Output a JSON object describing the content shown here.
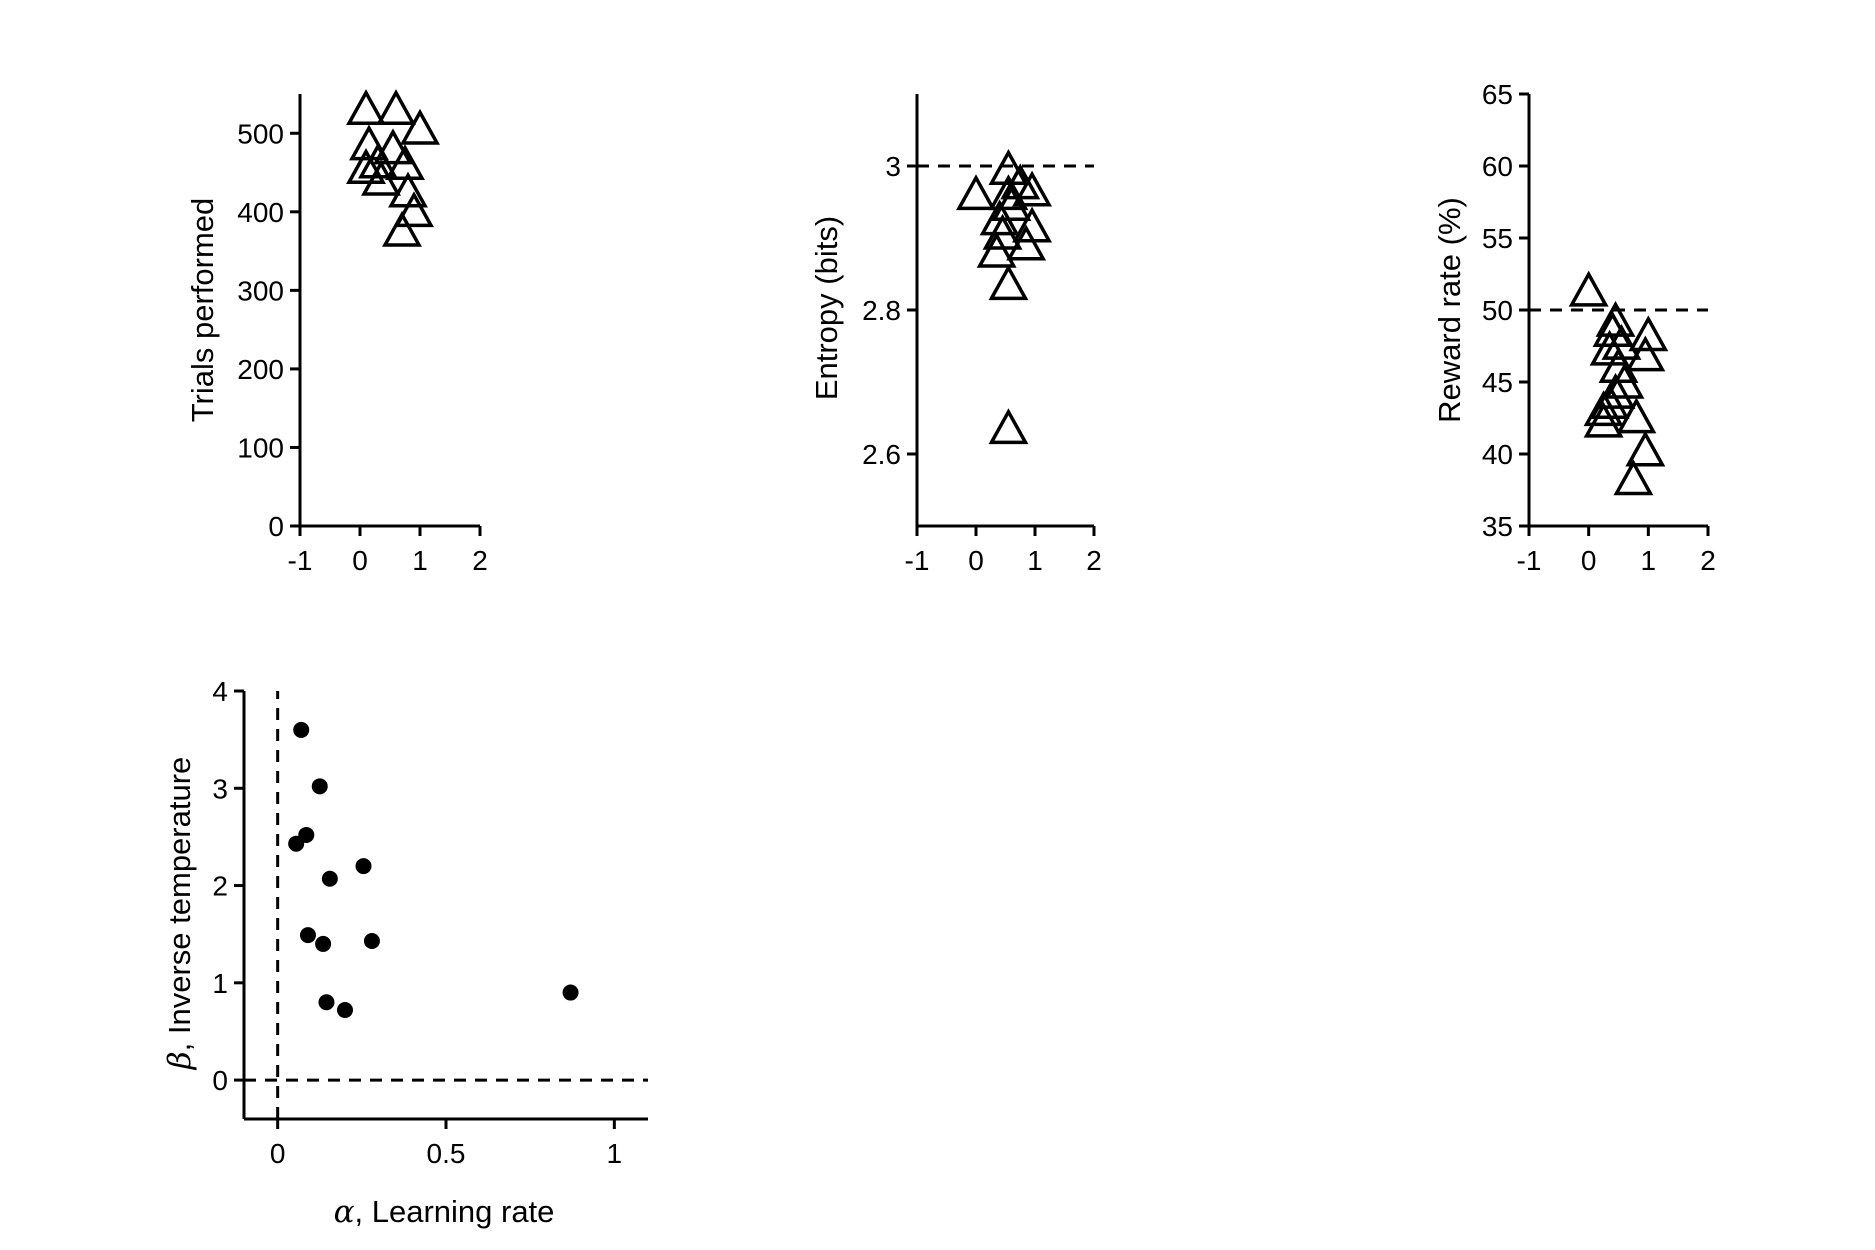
{
  "colors": {
    "marker": "#000000",
    "axis": "#000000",
    "background": "#ffffff"
  },
  "chart_data": [
    {
      "id": "trials",
      "type": "scatter",
      "marker": "open-triangle",
      "ylabel": "Trials performed",
      "xlim": [
        -1,
        2
      ],
      "ylim": [
        0,
        550
      ],
      "xticks": [
        "-1",
        "0",
        "1",
        "2"
      ],
      "yticks": [
        "0",
        "100",
        "200",
        "300",
        "400",
        "500"
      ],
      "reference_line_y": null,
      "points": [
        [
          0.1,
          530
        ],
        [
          0.6,
          530
        ],
        [
          1.0,
          505
        ],
        [
          0.15,
          485
        ],
        [
          0.55,
          480
        ],
        [
          0.3,
          462
        ],
        [
          0.75,
          460
        ],
        [
          0.1,
          455
        ],
        [
          0.35,
          440
        ],
        [
          0.8,
          425
        ],
        [
          0.9,
          400
        ],
        [
          0.7,
          375
        ]
      ]
    },
    {
      "id": "entropy",
      "type": "scatter",
      "marker": "open-triangle",
      "ylabel": "Entropy (bits)",
      "xlim": [
        -1,
        2
      ],
      "ylim": [
        2.5,
        3.1
      ],
      "xticks": [
        "-1",
        "0",
        "1",
        "2"
      ],
      "yticks": [
        "2.6",
        "2.8",
        "3"
      ],
      "reference_line_y": 3.0,
      "points": [
        [
          0.55,
          2.995
        ],
        [
          0.75,
          2.975
        ],
        [
          0.95,
          2.965
        ],
        [
          0.0,
          2.96
        ],
        [
          0.55,
          2.96
        ],
        [
          0.6,
          2.945
        ],
        [
          0.4,
          2.925
        ],
        [
          0.95,
          2.915
        ],
        [
          0.45,
          2.905
        ],
        [
          0.85,
          2.89
        ],
        [
          0.35,
          2.88
        ],
        [
          0.55,
          2.835
        ],
        [
          0.55,
          2.635
        ]
      ]
    },
    {
      "id": "reward",
      "type": "scatter",
      "marker": "open-triangle",
      "ylabel": "Reward rate (%)",
      "xlim": [
        -1,
        2
      ],
      "ylim": [
        35,
        65
      ],
      "xticks": [
        "-1",
        "0",
        "1",
        "2"
      ],
      "yticks": [
        "35",
        "40",
        "45",
        "50",
        "55",
        "60",
        "65"
      ],
      "reference_line_y": 50,
      "points": [
        [
          0.0,
          51.3
        ],
        [
          0.45,
          49.2
        ],
        [
          0.4,
          48.5
        ],
        [
          1.0,
          48.2
        ],
        [
          0.55,
          47.6
        ],
        [
          0.35,
          47.2
        ],
        [
          0.95,
          46.8
        ],
        [
          0.5,
          46.0
        ],
        [
          0.6,
          44.9
        ],
        [
          0.45,
          44.2
        ],
        [
          0.35,
          43.5
        ],
        [
          0.25,
          43.0
        ],
        [
          0.8,
          42.5
        ],
        [
          0.25,
          42.2
        ],
        [
          0.95,
          40.2
        ],
        [
          0.75,
          38.2
        ]
      ]
    },
    {
      "id": "params",
      "type": "scatter",
      "marker": "filled-circle",
      "xlabel_symbol": "α",
      "xlabel": ", Learning rate",
      "ylabel_symbol": "β",
      "ylabel": ", Inverse temperature",
      "xlim": [
        -0.1,
        1.1
      ],
      "ylim": [
        -0.4,
        4
      ],
      "xticks": [
        "0",
        "0.5",
        "1"
      ],
      "yticks": [
        "0",
        "1",
        "2",
        "3",
        "4"
      ],
      "reference_line_x": 0,
      "reference_line_y": 0,
      "points": [
        [
          0.07,
          3.6
        ],
        [
          0.125,
          3.02
        ],
        [
          0.085,
          2.52
        ],
        [
          0.055,
          2.43
        ],
        [
          0.255,
          2.2
        ],
        [
          0.155,
          2.07
        ],
        [
          0.09,
          1.49
        ],
        [
          0.28,
          1.43
        ],
        [
          0.135,
          1.4
        ],
        [
          0.145,
          0.8
        ],
        [
          0.2,
          0.72
        ],
        [
          0.87,
          0.9
        ]
      ]
    }
  ]
}
